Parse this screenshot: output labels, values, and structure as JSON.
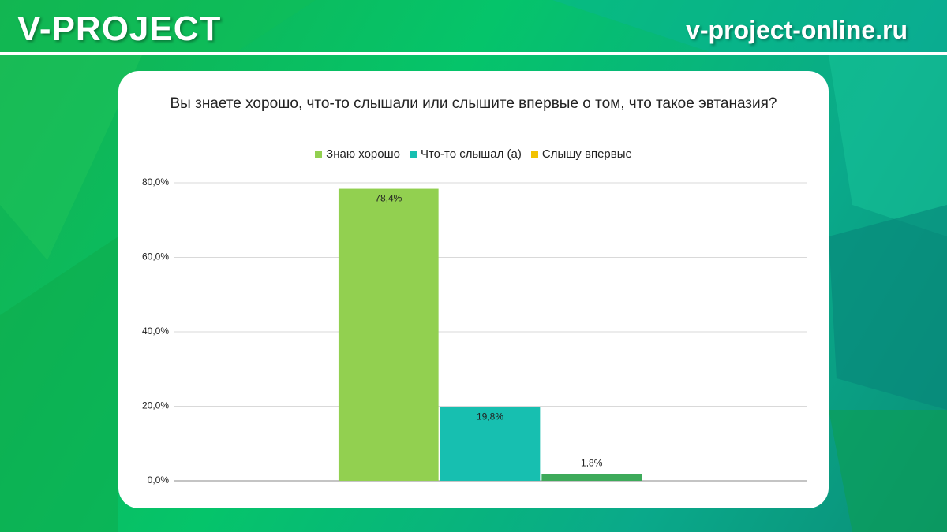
{
  "header": {
    "logo": "V-PROJECT",
    "site": "v-project-online.ru"
  },
  "chart_data": {
    "type": "bar",
    "title": "Вы знаете хорошо, что-то слышали или слышите впервые о том, что такое эвтаназия?",
    "categories": [
      null
    ],
    "series": [
      {
        "name": "Знаю хорошо",
        "color": "#92d050",
        "legend_color": "#92d050",
        "values": [
          78.4
        ],
        "value_labels": [
          "78,4%"
        ]
      },
      {
        "name": "Что-то слышал (а)",
        "color": "#17bfb0",
        "legend_color": "#17bfb0",
        "values": [
          19.8
        ],
        "value_labels": [
          "19,8%"
        ]
      },
      {
        "name": "Слышу впервые",
        "color": "#3daa5a",
        "legend_color": "#f2c200",
        "values": [
          1.8
        ],
        "value_labels": [
          "1,8%"
        ]
      }
    ],
    "ylim": [
      0,
      80
    ],
    "yticks": [
      {
        "value": 0,
        "label": "0,0%"
      },
      {
        "value": 20,
        "label": "20,0%"
      },
      {
        "value": 40,
        "label": "40,0%"
      },
      {
        "value": 60,
        "label": "60,0%"
      },
      {
        "value": 80,
        "label": "80,0%"
      }
    ],
    "grid": true
  }
}
